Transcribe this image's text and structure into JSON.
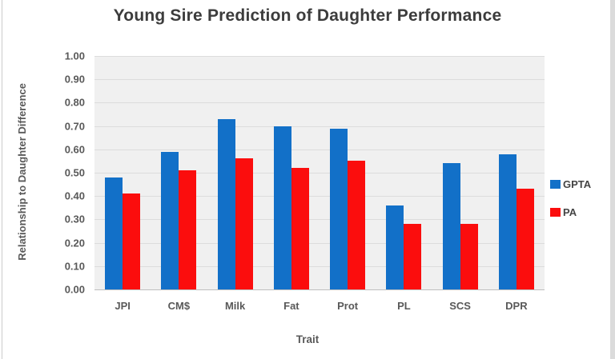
{
  "frame": {
    "left_line_color": "#cccccc",
    "right_band_color": "#dbdbdb"
  },
  "chart_data": {
    "type": "bar",
    "title": "Young Sire Prediction of Daughter Performance",
    "xlabel": "Trait",
    "ylabel": "Relationship to Daughter Difference",
    "categories": [
      "JPI",
      "CM$",
      "Milk",
      "Fat",
      "Prot",
      "PL",
      "SCS",
      "DPR"
    ],
    "series": [
      {
        "name": "GPTA",
        "color": "#1270C8",
        "values": [
          0.48,
          0.59,
          0.73,
          0.7,
          0.69,
          0.36,
          0.54,
          0.58
        ]
      },
      {
        "name": "PA",
        "color": "#FB0D0D",
        "values": [
          0.41,
          0.51,
          0.56,
          0.52,
          0.55,
          0.28,
          0.28,
          0.43
        ]
      }
    ],
    "ylim": [
      0,
      1
    ],
    "ytick_step": 0.1,
    "ytick_labels_top_to_bottom": [
      "1.00",
      "0.90",
      "0.80",
      "0.70",
      "0.60",
      "0.50",
      "0.40",
      "0.30",
      "0.20",
      "0.10",
      "0.00"
    ],
    "grid": true,
    "legend_position": "right",
    "style": {
      "plot_bg": "#F0F0F0",
      "gridline_color": "#DCDCDC",
      "axis_line_color": "#BFBFBF",
      "title_color": "#3C3C3C",
      "label_color": "#595959",
      "legend_text_color": "#444444"
    }
  }
}
